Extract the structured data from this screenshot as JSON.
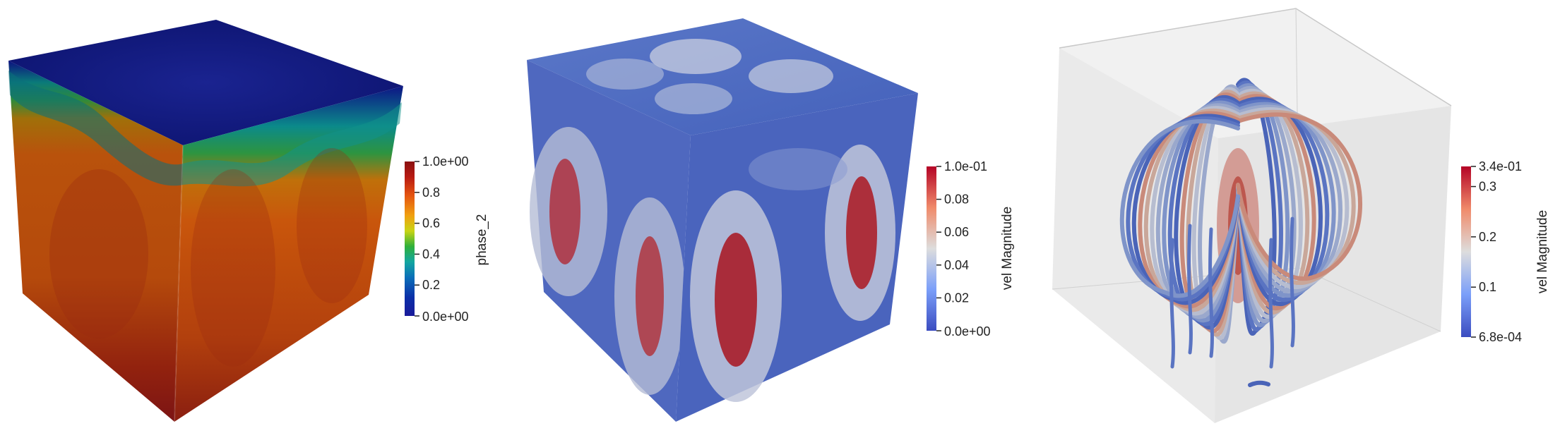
{
  "panels": [
    {
      "scalar_name": "phase_2",
      "colormap": "jet",
      "colorbar": {
        "min_label": "0.0e+00",
        "max_label": "1.0e+00",
        "ticks": [
          "0.2",
          "0.4",
          "0.6",
          "0.8"
        ],
        "tick_values": [
          0.2,
          0.4,
          0.6,
          0.8
        ],
        "range": [
          0.0,
          1.0
        ]
      }
    },
    {
      "scalar_name": "vel Magnitude",
      "colormap": "coolwarm",
      "colorbar": {
        "min_label": "0.0e+00",
        "max_label": "1.0e-01",
        "ticks": [
          "0.02",
          "0.04",
          "0.06",
          "0.08"
        ],
        "tick_values": [
          0.02,
          0.04,
          0.06,
          0.08
        ],
        "range": [
          0.0,
          0.1
        ]
      }
    },
    {
      "scalar_name": "vel Magnitude",
      "colormap": "coolwarm",
      "colorbar": {
        "min_label": "6.8e-04",
        "max_label": "3.4e-01",
        "ticks": [
          "0.1",
          "0.2",
          "0.3"
        ],
        "tick_values": [
          0.1,
          0.2,
          0.3
        ],
        "range": [
          0.00068,
          0.34
        ]
      }
    }
  ],
  "colors": {
    "jet_low": "#1a1a9a",
    "jet_high": "#8a1010",
    "coolwarm_low": "#3b4cc0",
    "coolwarm_mid": "#dddddd",
    "coolwarm_high": "#b40426",
    "box_face": "#d8d8d8"
  }
}
